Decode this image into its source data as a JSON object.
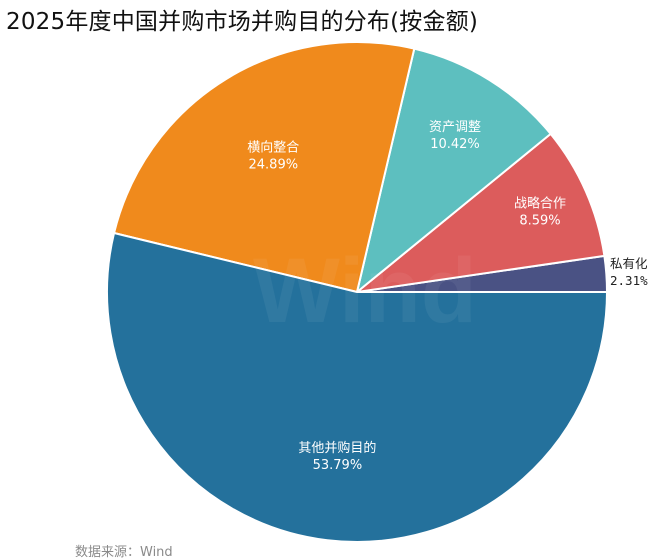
{
  "chart_data": {
    "type": "pie",
    "title": "2025年度中国并购市场并购目的分布(按金额)",
    "categories": [
      "私有化",
      "战略合作",
      "资产调整",
      "横向整合",
      "其他并购目的"
    ],
    "values": [
      2.31,
      8.59,
      10.42,
      24.89,
      53.79
    ],
    "value_labels": [
      "2.31%",
      "8.59%",
      "10.42%",
      "24.89%",
      "53.79%"
    ],
    "unit": "%",
    "colors": [
      "#4a5284",
      "#dc5c5c",
      "#5dbfbf",
      "#f08a1c",
      "#24719c"
    ],
    "start_angle_deg": 0,
    "direction": "counterclockwise",
    "legend": "none"
  },
  "source": "数据来源：Wind",
  "watermark": "Wind"
}
